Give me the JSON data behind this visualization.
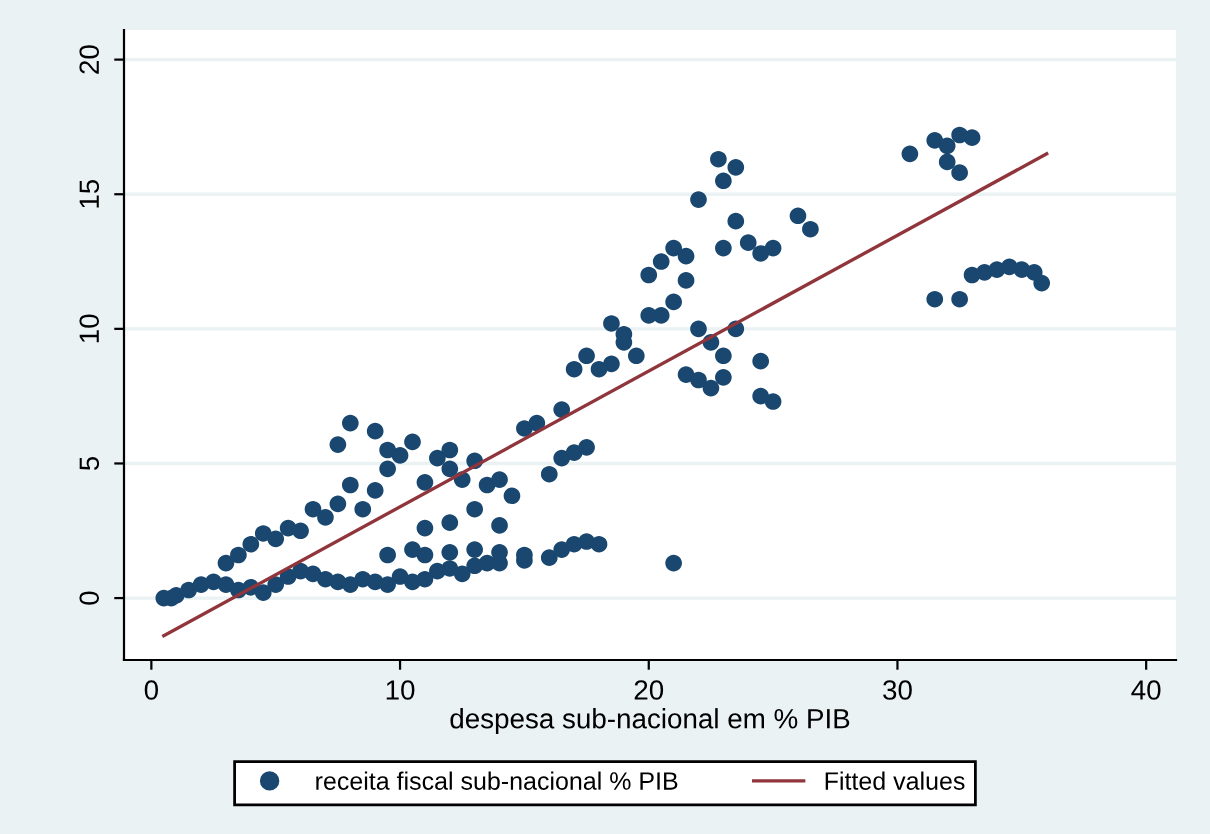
{
  "chart_data": {
    "type": "scatter",
    "xlabel": "despesa sub-nacional em % PIB",
    "xlim": [
      -1.1,
      41.2
    ],
    "ylim": [
      -2.3,
      21.1
    ],
    "xticks": [
      0,
      10,
      20,
      30,
      40
    ],
    "yticks": [
      0,
      5,
      10,
      15,
      20
    ],
    "grid": "y",
    "legend": "bottom",
    "marker": "circle",
    "series": [
      {
        "name": "receita fiscal sub-nacional % PIB",
        "color": "#1a476f",
        "x": [
          0.5,
          0.8,
          1,
          1.5,
          2,
          2.5,
          3,
          3.5,
          4,
          4.5,
          5,
          5.5,
          6,
          6.5,
          7,
          7.5,
          8,
          8.5,
          9,
          9.5,
          10,
          10.5,
          11,
          11.5,
          12,
          13,
          14,
          15,
          16,
          9.5,
          10.5,
          11,
          12,
          13,
          14,
          15,
          16.5,
          17,
          17.5,
          18,
          21,
          12.5,
          13.5,
          3,
          3.5,
          4,
          4.5,
          5,
          5.5,
          6,
          6.5,
          7,
          7.5,
          8,
          8.5,
          9,
          9.5,
          10,
          10.5,
          11,
          11.5,
          12,
          12.5,
          13,
          13.5,
          14,
          14.5,
          15,
          15.5,
          16,
          16.5,
          17,
          17.5,
          8,
          9,
          7.5,
          9.5,
          12,
          13,
          14,
          11,
          12,
          16.5,
          17,
          17.5,
          18,
          18.5,
          19,
          19.5,
          20,
          20.5,
          21,
          21.5,
          20.5,
          21,
          21.5,
          22,
          22.5,
          23,
          24.5,
          24.5,
          25,
          23,
          23.5,
          22.8,
          22,
          23.5,
          23,
          24,
          24.5,
          25,
          26,
          26.5,
          21.5,
          22,
          20,
          22.5,
          23.5,
          23,
          19,
          18.5,
          30.5,
          31.5,
          32,
          32.5,
          33,
          32,
          32.5,
          31.5,
          32.5,
          33,
          33.5,
          34,
          34.5,
          35,
          35.5,
          35.8
        ],
        "values": [
          0,
          0,
          0.1,
          0.3,
          0.5,
          0.6,
          0.5,
          0.3,
          0.4,
          0.2,
          0.5,
          0.8,
          1,
          0.9,
          0.7,
          0.6,
          0.5,
          0.7,
          0.6,
          0.5,
          0.8,
          0.6,
          0.7,
          1.0,
          1.1,
          1.2,
          1.3,
          1.4,
          1.5,
          1.6,
          1.8,
          1.6,
          1.7,
          1.8,
          1.7,
          1.6,
          1.8,
          2.0,
          2.1,
          2.0,
          1.3,
          0.9,
          1.3,
          1.3,
          1.6,
          2,
          2.4,
          2.2,
          2.6,
          2.5,
          3.3,
          3,
          3.5,
          4.2,
          3.3,
          4,
          4.8,
          5.3,
          5.8,
          4.3,
          5.2,
          4.8,
          4.4,
          5.1,
          4.2,
          4.4,
          3.8,
          6.3,
          6.5,
          4.6,
          5.2,
          5.4,
          5.6,
          6.5,
          6.2,
          5.7,
          5.5,
          5.5,
          3.3,
          2.7,
          2.6,
          2.8,
          7,
          8.5,
          9,
          8.5,
          8.7,
          9.5,
          9,
          12,
          12.5,
          13,
          12.7,
          10.5,
          11,
          8.3,
          8.1,
          7.8,
          8.2,
          8.8,
          7.5,
          7.3,
          15.5,
          16,
          16.3,
          14.8,
          14,
          13,
          13.2,
          12.8,
          13,
          14.2,
          13.7,
          11.8,
          10,
          10.5,
          9.5,
          10,
          9,
          9.8,
          10.2,
          16.5,
          17,
          16.8,
          17.2,
          17.1,
          16.2,
          15.8,
          11.1,
          11.1,
          12,
          12.1,
          12.2,
          12.3,
          12.2,
          12.1,
          11.7
        ]
      },
      {
        "name": "Fitted values",
        "color": "#90353b",
        "type": "line",
        "marker": "none",
        "x": [
          0.5,
          36
        ],
        "values": [
          -1.4,
          16.5
        ]
      }
    ]
  }
}
